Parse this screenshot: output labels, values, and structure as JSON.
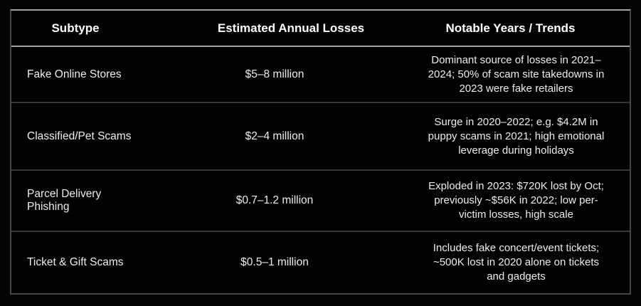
{
  "theme": {
    "page_bg": "#040404",
    "table_bg": "#020202",
    "outer_border": "#454545",
    "top_border": "#a3a3a3",
    "header_border": "#a3a3a3",
    "row_border": "#373737",
    "header_text": "#ffffff",
    "body_text": "#ededed"
  },
  "table": {
    "columns": [
      {
        "label": "Subtype"
      },
      {
        "label": "Estimated Annual Losses"
      },
      {
        "label": "Notable Years / Trends"
      }
    ],
    "rows": [
      {
        "subtype": "Fake Online Stores",
        "losses": "$5–8 million",
        "trends": "Dominant source of losses in 2021–2024; 50% of scam site takedowns in 2023 were fake retailers"
      },
      {
        "subtype": "Classified/Pet Scams",
        "losses": "$2–4 million",
        "trends": "Surge in 2020–2022; e.g. $4.2M in puppy scams in 2021; high emotional leverage during holidays"
      },
      {
        "subtype": "Parcel Delivery Phishing",
        "losses": "$0.7–1.2 million",
        "trends": "Exploded in 2023: $720K lost by Oct; previously ~$56K in 2022; low per-victim losses, high scale"
      },
      {
        "subtype": "Ticket & Gift Scams",
        "losses": "$0.5–1 million",
        "trends": "Includes fake concert/event tickets; ~500K lost in 2020 alone on tickets and gadgets"
      }
    ]
  }
}
